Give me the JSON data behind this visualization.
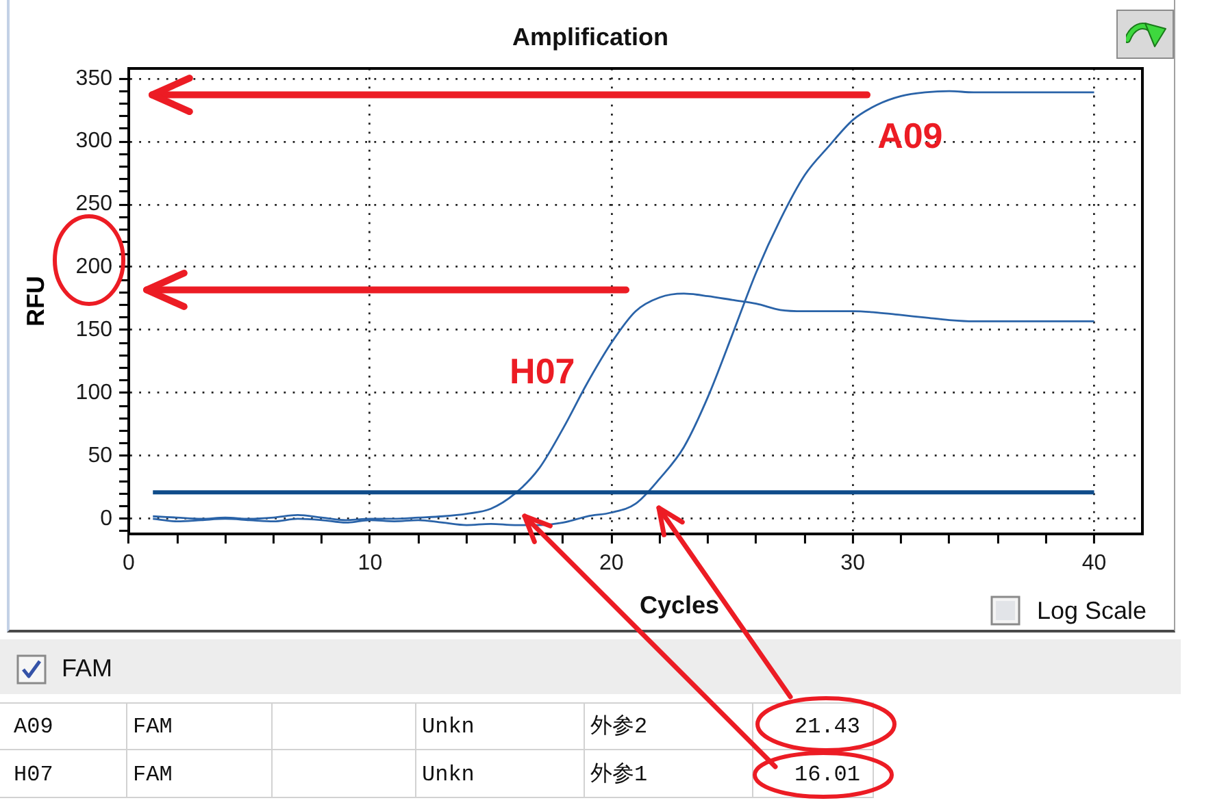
{
  "chart_data": [
    {
      "type": "line",
      "title": "Amplification",
      "xlabel": "Cycles",
      "ylabel": "RFU",
      "x": [
        1,
        2,
        3,
        4,
        5,
        6,
        7,
        8,
        9,
        10,
        11,
        12,
        13,
        14,
        15,
        16,
        17,
        18,
        19,
        20,
        21,
        22,
        23,
        24,
        25,
        26,
        27,
        28,
        29,
        30,
        31,
        32,
        33,
        34,
        35,
        36,
        37,
        38,
        39,
        40
      ],
      "series": [
        {
          "name": "A09",
          "color": "#2a63a8",
          "values": [
            0,
            -2,
            -1,
            0,
            -1,
            -2,
            0,
            -1,
            -3,
            -1,
            -2,
            -1,
            -3,
            -5,
            -4,
            -5,
            -5,
            -3,
            2,
            5,
            12,
            32,
            57,
            97,
            146,
            196,
            238,
            273,
            296,
            317,
            329,
            336,
            339,
            340,
            339,
            339,
            339,
            339,
            339,
            339
          ]
        },
        {
          "name": "H07",
          "color": "#2a63a8",
          "values": [
            2,
            1,
            0,
            1,
            0,
            1,
            3,
            1,
            -1,
            0,
            0,
            1,
            2,
            4,
            8,
            20,
            40,
            72,
            108,
            140,
            165,
            176,
            179,
            177,
            174,
            171,
            166,
            165,
            165,
            165,
            164,
            162,
            160,
            158,
            157,
            157,
            157,
            157,
            157,
            157
          ]
        }
      ],
      "xlim": [
        0,
        42
      ],
      "ylim": [
        -12,
        358
      ],
      "xticks": [
        0,
        {
          "value": 2,
          "label": null
        },
        {
          "value": 4,
          "label": null
        },
        {
          "value": 6,
          "label": null
        },
        {
          "value": 8,
          "label": null
        },
        10,
        {
          "value": 12,
          "label": null
        },
        {
          "value": 14,
          "label": null
        },
        {
          "value": 16,
          "label": null
        },
        {
          "value": 18,
          "label": null
        },
        20,
        {
          "value": 22,
          "label": null
        },
        {
          "value": 24,
          "label": null
        },
        {
          "value": 26,
          "label": null
        },
        {
          "value": 28,
          "label": null
        },
        30,
        {
          "value": 32,
          "label": null
        },
        {
          "value": 34,
          "label": null
        },
        {
          "value": 36,
          "label": null
        },
        {
          "value": 38,
          "label": null
        },
        40
      ],
      "yticks": [
        {
          "value": -10,
          "label": null
        },
        0,
        {
          "value": 10,
          "label": null
        },
        {
          "value": 20,
          "label": null
        },
        {
          "value": 30,
          "label": null
        },
        {
          "value": 40,
          "label": null
        },
        50,
        {
          "value": 60,
          "label": null
        },
        {
          "value": 70,
          "label": null
        },
        {
          "value": 80,
          "label": null
        },
        {
          "value": 90,
          "label": null
        },
        100,
        {
          "value": 110,
          "label": null
        },
        {
          "value": 120,
          "label": null
        },
        {
          "value": 130,
          "label": null
        },
        {
          "value": 140,
          "label": null
        },
        150,
        {
          "value": 160,
          "label": null
        },
        {
          "value": 170,
          "label": null
        },
        {
          "value": 180,
          "label": null
        },
        {
          "value": 190,
          "label": null
        },
        200,
        {
          "value": 210,
          "label": null
        },
        {
          "value": 220,
          "label": null
        },
        {
          "value": 230,
          "label": null
        },
        {
          "value": 240,
          "label": null
        },
        250,
        {
          "value": 260,
          "label": null
        },
        {
          "value": 270,
          "label": null
        },
        {
          "value": 280,
          "label": null
        },
        {
          "value": 290,
          "label": null
        },
        300,
        {
          "value": 310,
          "label": null
        },
        {
          "value": 320,
          "label": null
        },
        {
          "value": 330,
          "label": null
        },
        {
          "value": 340,
          "label": null
        },
        350
      ],
      "grid": true,
      "ref_lines": [
        {
          "axis": "y",
          "value": 21,
          "color": "#0f4c8a"
        },
        {
          "axis": "y",
          "value": 337,
          "color": "#ec1c24"
        },
        {
          "axis": "y",
          "value": 182,
          "color": "#ec1c24"
        }
      ],
      "annotations": [
        "Log Scale"
      ]
    },
    {
      "type": "other",
      "annotations": [
        "FAM",
        "A09",
        "FAM",
        "Unkn",
        "外参2",
        "21.43",
        "H07",
        "FAM",
        "Unkn",
        "外参1",
        "16.01"
      ]
    }
  ]
}
